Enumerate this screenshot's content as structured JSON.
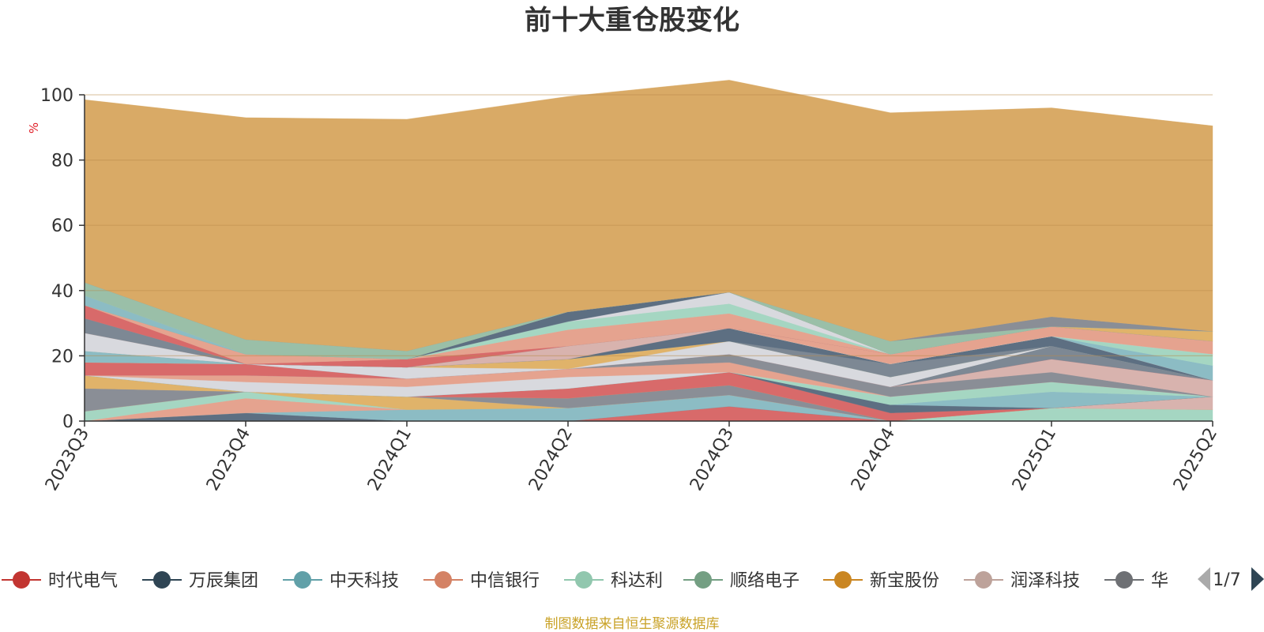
{
  "chart_data": {
    "type": "area",
    "title": "前十大重仓股变化",
    "ylabel": "%",
    "ylim": [
      0,
      100
    ],
    "yticks": [
      0,
      20,
      40,
      60,
      80,
      100
    ],
    "categories": [
      "2023Q3",
      "2023Q4",
      "2024Q1",
      "2024Q2",
      "2024Q3",
      "2024Q4",
      "2025Q1",
      "2025Q2"
    ],
    "stacked": true,
    "grid": true,
    "series": [
      {
        "name": "时代电气",
        "color": "#d86a6a",
        "values": [
          0,
          0,
          0,
          0,
          4.5,
          0,
          0,
          0
        ]
      },
      {
        "name": "万辰集团",
        "color": "#5d6f82",
        "values": [
          0,
          2.5,
          0,
          0,
          0,
          0,
          0,
          0
        ]
      },
      {
        "name": "中天科技",
        "color": "#8cbcc4",
        "values": [
          0,
          0,
          3.5,
          4,
          3.5,
          0,
          0,
          0
        ]
      },
      {
        "name": "中信银行",
        "color": "#e5a38f",
        "values": [
          0,
          4.5,
          0,
          0,
          0,
          0,
          0,
          0
        ]
      },
      {
        "name": "科达利",
        "color": "#a5d6c2",
        "values": [
          3,
          2,
          0,
          0,
          0,
          0,
          4,
          3.5
        ]
      },
      {
        "name": "顺络电子",
        "color": "#9abfa8",
        "values": [
          0,
          0,
          0,
          0,
          0,
          0,
          0,
          0
        ]
      },
      {
        "name": "新宝股份",
        "color": "#e0b36a",
        "values": [
          0,
          0,
          4,
          0,
          0,
          0,
          0,
          0
        ]
      },
      {
        "name": "润泽科技",
        "color": "#d8b3ae",
        "values": [
          0,
          0,
          0,
          0,
          0,
          0,
          0,
          4
        ]
      },
      {
        "name": "",
        "color": "#8a8e96",
        "values": [
          7,
          0,
          0,
          3,
          3,
          0,
          0,
          0
        ]
      },
      {
        "name": "",
        "color": "#e0b36a",
        "values": [
          4,
          0,
          0,
          0,
          0,
          0,
          0,
          0
        ]
      },
      {
        "name": "",
        "color": "#d86a6a",
        "values": [
          0,
          0,
          0,
          3,
          4,
          2.5,
          0,
          0
        ]
      },
      {
        "name": "",
        "color": "#5d6f82",
        "values": [
          0,
          0,
          0,
          0,
          0,
          2.5,
          0,
          0
        ]
      },
      {
        "name": "",
        "color": "#8cbcc4",
        "values": [
          0,
          0,
          0,
          0,
          0,
          0,
          5,
          0
        ]
      },
      {
        "name": "",
        "color": "#a5d6c2",
        "values": [
          0,
          0,
          0,
          0,
          0,
          2.5,
          3,
          0
        ]
      },
      {
        "name": "",
        "color": "#d8d9de",
        "values": [
          0,
          3,
          3,
          3.5,
          0,
          0,
          0,
          0
        ]
      },
      {
        "name": "",
        "color": "#e5a38f",
        "values": [
          0,
          2,
          2.5,
          2.5,
          3,
          0,
          0,
          0
        ]
      },
      {
        "name": "",
        "color": "#8a8e96",
        "values": [
          0,
          0,
          0,
          0,
          2.5,
          3,
          3,
          0
        ]
      },
      {
        "name": "",
        "color": "#d8b3ae",
        "values": [
          0,
          0,
          0,
          0,
          0,
          0,
          4,
          5
        ]
      },
      {
        "name": "",
        "color": "#d86a6a",
        "values": [
          4,
          3.5,
          0,
          0,
          0,
          0,
          0,
          0
        ]
      },
      {
        "name": "",
        "color": "#7d8894",
        "values": [
          0,
          0,
          0,
          0,
          0,
          0,
          4,
          0
        ]
      },
      {
        "name": "",
        "color": "#d8d9de",
        "values": [
          0,
          0,
          3.5,
          0,
          4,
          3,
          0,
          0
        ]
      },
      {
        "name": "",
        "color": "#e0b36a",
        "values": [
          0,
          0,
          0,
          3,
          0,
          0,
          0,
          0
        ]
      },
      {
        "name": "",
        "color": "#8cbcc4",
        "values": [
          3.5,
          0,
          0,
          0,
          0,
          0,
          0,
          0
        ]
      },
      {
        "name": "",
        "color": "#7d8894",
        "values": [
          0,
          0,
          0,
          0,
          0,
          4,
          0,
          0
        ]
      },
      {
        "name": "",
        "color": "#5d6f82",
        "values": [
          0,
          0,
          0,
          0,
          4,
          0,
          3,
          0
        ]
      },
      {
        "name": "",
        "color": "#d8b3ae",
        "values": [
          0,
          0,
          0,
          4,
          0,
          0,
          0,
          0
        ]
      },
      {
        "name": "",
        "color": "#8cbcc4",
        "values": [
          0,
          0,
          0,
          0,
          0,
          0,
          0,
          4.5
        ]
      },
      {
        "name": "",
        "color": "#a5d6c2",
        "values": [
          0,
          0,
          0,
          0,
          0,
          0,
          0,
          3.5
        ]
      },
      {
        "name": "",
        "color": "#d8d9de",
        "values": [
          5.5,
          0,
          0,
          0,
          0,
          0,
          0,
          0
        ]
      },
      {
        "name": "",
        "color": "#e5a38f",
        "values": [
          0,
          0,
          0,
          0,
          0,
          3,
          3,
          4
        ]
      },
      {
        "name": "",
        "color": "#7d8894",
        "values": [
          4.5,
          0,
          0,
          0,
          0,
          0,
          0,
          0
        ]
      },
      {
        "name": "",
        "color": "#d86a6a",
        "values": [
          4,
          0,
          2.5,
          0,
          0,
          0,
          0,
          0
        ]
      },
      {
        "name": "",
        "color": "#e5a38f",
        "values": [
          0,
          3,
          0,
          5,
          4.5,
          0,
          0,
          0
        ]
      },
      {
        "name": "",
        "color": "#a5d6c2",
        "values": [
          0,
          0,
          0,
          2.5,
          3,
          0,
          0,
          0
        ]
      },
      {
        "name": "",
        "color": "#d8d9de",
        "values": [
          0,
          0,
          0,
          0,
          3.5,
          0,
          0,
          0
        ]
      },
      {
        "name": "",
        "color": "#5d6f82",
        "values": [
          0,
          0,
          0,
          3,
          0,
          0,
          0,
          0
        ]
      },
      {
        "name": "",
        "color": "#e0b36a",
        "values": [
          0,
          0,
          0,
          0,
          0,
          0,
          0,
          3
        ]
      },
      {
        "name": "",
        "color": "#8cbcc4",
        "values": [
          3,
          0,
          0,
          0,
          0,
          0,
          0,
          0
        ]
      },
      {
        "name": "",
        "color": "#9abfa8",
        "values": [
          4,
          4.5,
          2.5,
          0,
          0,
          4,
          0,
          0
        ]
      },
      {
        "name": "",
        "color": "#8a8e96",
        "values": [
          0,
          0,
          0,
          0,
          0,
          0,
          3,
          0
        ]
      },
      {
        "name": "",
        "color": "#d9aa66",
        "values": [
          56,
          68,
          71,
          66,
          65,
          70,
          64,
          63
        ]
      }
    ]
  },
  "legend": {
    "items": [
      {
        "name": "时代电气",
        "color": "#c23531"
      },
      {
        "name": "万辰集团",
        "color": "#2f4554"
      },
      {
        "name": "中天科技",
        "color": "#61a0a8"
      },
      {
        "name": "中信银行",
        "color": "#d48265"
      },
      {
        "name": "科达利",
        "color": "#91c7ae"
      },
      {
        "name": "顺络电子",
        "color": "#749f83"
      },
      {
        "name": "新宝股份",
        "color": "#ca8622"
      },
      {
        "name": "润泽科技",
        "color": "#bda29a"
      },
      {
        "name": "华",
        "color": "#6e7074"
      }
    ],
    "page": "1/7"
  },
  "footer": {
    "source": "制图数据来自恒生聚源数据库"
  }
}
